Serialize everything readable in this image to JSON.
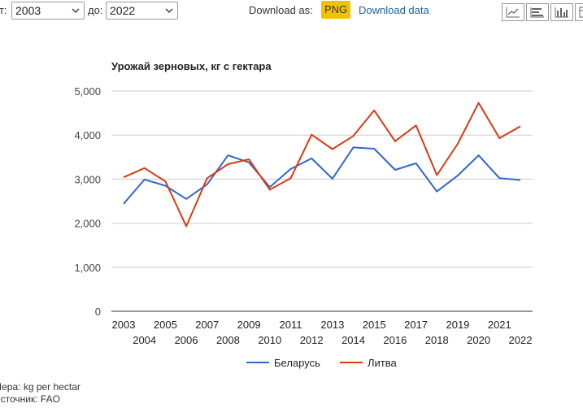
{
  "controls": {
    "from_label": "от:",
    "from_value": "2003",
    "to_label": "до:",
    "to_value": "2022",
    "download_label": "Download as:",
    "png_button": "PNG",
    "download_data": "Download data"
  },
  "icons": [
    "line-chart-icon",
    "bar-horizontal-icon",
    "column-chart-icon",
    "table-icon"
  ],
  "footer": {
    "measure": "Мера: kg per hectar",
    "source": "Источник: FAO"
  },
  "chart_data": {
    "type": "line",
    "title": "Урожай зерновых, кг с гектара",
    "xlabel": "",
    "ylabel": "",
    "x": [
      2003,
      2004,
      2005,
      2006,
      2007,
      2008,
      2009,
      2010,
      2011,
      2012,
      2013,
      2014,
      2015,
      2016,
      2017,
      2018,
      2019,
      2020,
      2021,
      2022
    ],
    "x_tick_labels": [
      "2003",
      "2004",
      "2005",
      "2006",
      "2007",
      "2008",
      "2009",
      "2010",
      "2011",
      "2012",
      "2013",
      "2014",
      "2015",
      "2016",
      "2017",
      "2018",
      "2019",
      "2020",
      "2021",
      "2022"
    ],
    "ylim": [
      0,
      5000
    ],
    "y_ticks": [
      0,
      1000,
      2000,
      3000,
      4000,
      5000
    ],
    "y_tick_labels": [
      "0",
      "1,000",
      "2,000",
      "3,000",
      "4,000",
      "5,000"
    ],
    "grid": true,
    "legend_position": "bottom",
    "series": [
      {
        "name": "Беларусь",
        "color": "#3366cc",
        "values": [
          2440,
          2990,
          2850,
          2550,
          2880,
          3540,
          3380,
          2820,
          3230,
          3470,
          3010,
          3720,
          3690,
          3210,
          3360,
          2720,
          3080,
          3540,
          3020,
          2980
        ]
      },
      {
        "name": "Литва",
        "color": "#dc3912",
        "values": [
          3040,
          3250,
          2950,
          1930,
          3020,
          3340,
          3450,
          2760,
          3020,
          4010,
          3680,
          3980,
          4560,
          3860,
          4220,
          3090,
          3800,
          4730,
          3930,
          4200
        ]
      }
    ]
  }
}
